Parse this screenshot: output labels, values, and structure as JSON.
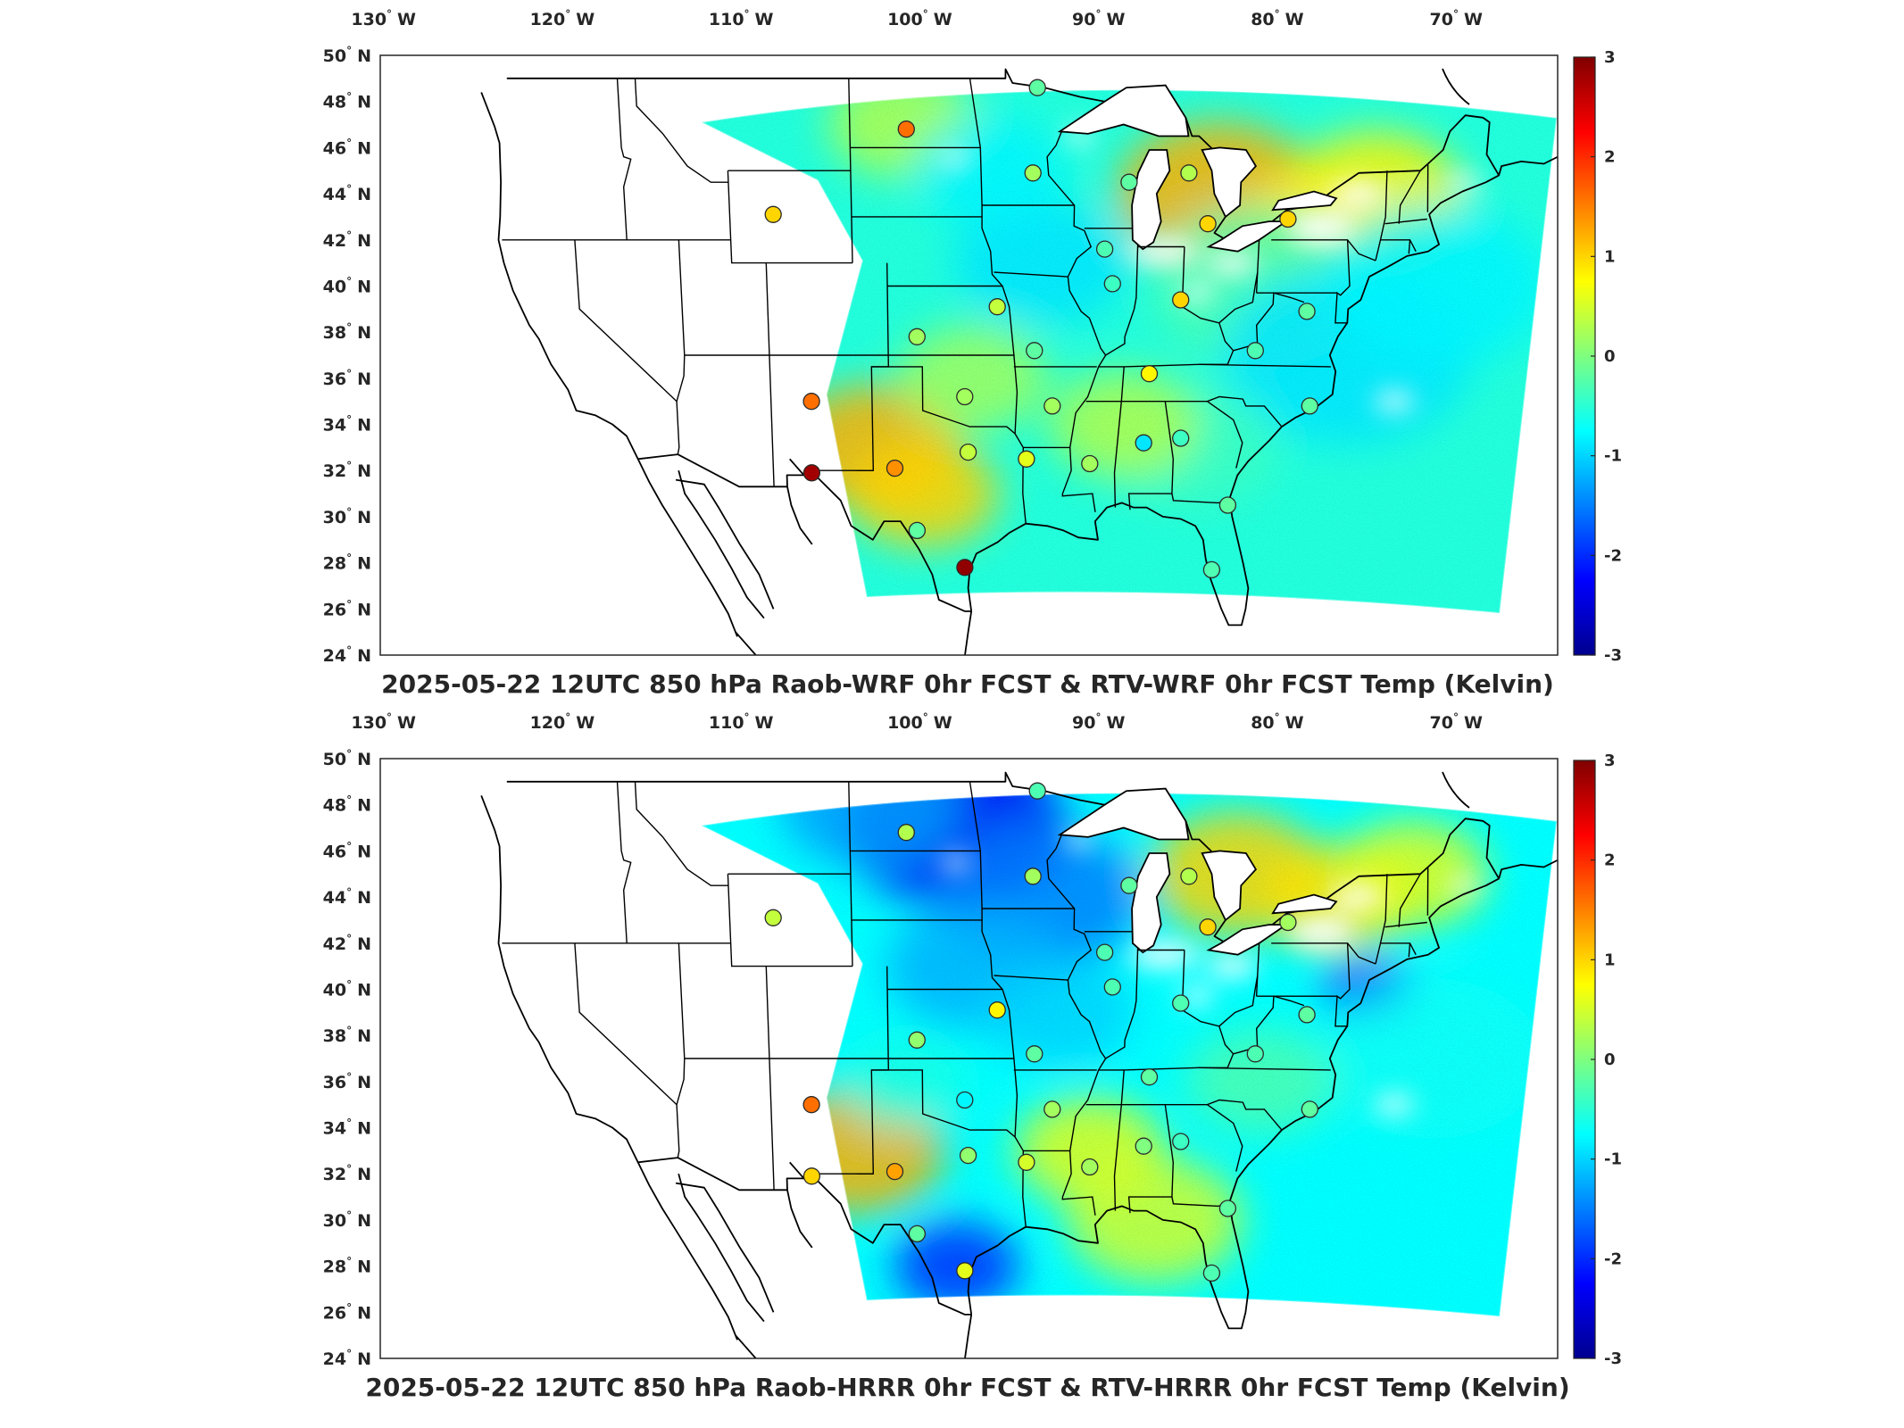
{
  "panels": [
    {
      "title": "2025-05-22 12UTC 850 hPa Raob-WRF 0hr FCST & RTV-WRF 0hr FCST Temp (Kelvin)",
      "variant": "wrf"
    },
    {
      "title": "2025-05-22 12UTC 850 hPa Raob-HRRR 0hr FCST & RTV-HRRR 0hr FCST Temp (Kelvin)",
      "variant": "hrrr"
    }
  ],
  "lon_ticks": [
    {
      "value": -130,
      "label": "130",
      "hemi": "W"
    },
    {
      "value": -120,
      "label": "120",
      "hemi": "W"
    },
    {
      "value": -110,
      "label": "110",
      "hemi": "W"
    },
    {
      "value": -100,
      "label": "100",
      "hemi": "W"
    },
    {
      "value": -90,
      "label": "90",
      "hemi": "W"
    },
    {
      "value": -80,
      "label": "80",
      "hemi": "W"
    },
    {
      "value": -70,
      "label": "70",
      "hemi": "W"
    }
  ],
  "lat_ticks": [
    {
      "value": 50,
      "label": "50",
      "hemi": "N"
    },
    {
      "value": 48,
      "label": "48",
      "hemi": "N"
    },
    {
      "value": 46,
      "label": "46",
      "hemi": "N"
    },
    {
      "value": 44,
      "label": "44",
      "hemi": "N"
    },
    {
      "value": 42,
      "label": "42",
      "hemi": "N"
    },
    {
      "value": 40,
      "label": "40",
      "hemi": "N"
    },
    {
      "value": 38,
      "label": "38",
      "hemi": "N"
    },
    {
      "value": 36,
      "label": "36",
      "hemi": "N"
    },
    {
      "value": 34,
      "label": "34",
      "hemi": "N"
    },
    {
      "value": 32,
      "label": "32",
      "hemi": "N"
    },
    {
      "value": 30,
      "label": "30",
      "hemi": "N"
    },
    {
      "value": 28,
      "label": "28",
      "hemi": "N"
    },
    {
      "value": 26,
      "label": "26",
      "hemi": "N"
    },
    {
      "value": 24,
      "label": "24",
      "hemi": "N"
    }
  ],
  "colorbar": {
    "min": -3,
    "max": 3,
    "ticks": [
      "3",
      "2",
      "1",
      "0",
      "-1",
      "-2",
      "-3"
    ],
    "colormap": "jet"
  },
  "stations_wrf": [
    {
      "lon": -93.4,
      "lat": 48.6,
      "v": -0.2
    },
    {
      "lon": -100.8,
      "lat": 46.8,
      "v": 1.6
    },
    {
      "lon": -93.6,
      "lat": 44.9,
      "v": 0.2
    },
    {
      "lon": -88.1,
      "lat": 44.5,
      "v": -0.2
    },
    {
      "lon": -84.7,
      "lat": 44.9,
      "v": 0.3
    },
    {
      "lon": -108.5,
      "lat": 43.1,
      "v": 1.0
    },
    {
      "lon": -83.5,
      "lat": 42.7,
      "v": 1.0
    },
    {
      "lon": -78.9,
      "lat": 42.9,
      "v": 1.0
    },
    {
      "lon": -89.4,
      "lat": 41.6,
      "v": -0.3
    },
    {
      "lon": -88.9,
      "lat": 40.1,
      "v": -0.4
    },
    {
      "lon": -84.9,
      "lat": 39.4,
      "v": 1.0
    },
    {
      "lon": -95.6,
      "lat": 39.1,
      "v": 0.4
    },
    {
      "lon": -100.3,
      "lat": 37.8,
      "v": 0.2
    },
    {
      "lon": -77.5,
      "lat": 38.9,
      "v": -0.2
    },
    {
      "lon": -93.4,
      "lat": 37.2,
      "v": -0.2
    },
    {
      "lon": -80.4,
      "lat": 37.2,
      "v": -0.3
    },
    {
      "lon": -86.6,
      "lat": 36.2,
      "v": 0.8
    },
    {
      "lon": -97.5,
      "lat": 35.2,
      "v": 0.2
    },
    {
      "lon": -92.3,
      "lat": 34.8,
      "v": 0.2
    },
    {
      "lon": -77.0,
      "lat": 34.8,
      "v": -0.2
    },
    {
      "lon": -106.6,
      "lat": 35.0,
      "v": 1.6
    },
    {
      "lon": -84.6,
      "lat": 33.4,
      "v": -0.4
    },
    {
      "lon": -86.8,
      "lat": 33.2,
      "v": -0.9
    },
    {
      "lon": -97.3,
      "lat": 32.8,
      "v": 0.4
    },
    {
      "lon": -101.7,
      "lat": 32.1,
      "v": 1.4
    },
    {
      "lon": -93.8,
      "lat": 32.5,
      "v": 0.6
    },
    {
      "lon": -90.0,
      "lat": 32.3,
      "v": 0.2
    },
    {
      "lon": -106.7,
      "lat": 31.9,
      "v": 2.8
    },
    {
      "lon": -100.4,
      "lat": 29.4,
      "v": -0.2
    },
    {
      "lon": -81.6,
      "lat": 30.5,
      "v": -0.2
    },
    {
      "lon": -97.5,
      "lat": 27.8,
      "v": 2.9
    },
    {
      "lon": -82.4,
      "lat": 27.7,
      "v": -0.3
    }
  ],
  "stations_hrrr": [
    {
      "lon": -93.4,
      "lat": 48.6,
      "v": -0.3
    },
    {
      "lon": -100.8,
      "lat": 46.8,
      "v": 0.3
    },
    {
      "lon": -93.6,
      "lat": 44.9,
      "v": 0.2
    },
    {
      "lon": -88.1,
      "lat": 44.5,
      "v": -0.2
    },
    {
      "lon": -84.7,
      "lat": 44.9,
      "v": 0.3
    },
    {
      "lon": -108.5,
      "lat": 43.1,
      "v": 0.4
    },
    {
      "lon": -83.5,
      "lat": 42.7,
      "v": 1.0
    },
    {
      "lon": -78.9,
      "lat": 42.9,
      "v": 0.2
    },
    {
      "lon": -89.4,
      "lat": 41.6,
      "v": -0.3
    },
    {
      "lon": -88.9,
      "lat": 40.1,
      "v": -0.3
    },
    {
      "lon": -84.9,
      "lat": 39.4,
      "v": -0.3
    },
    {
      "lon": -95.6,
      "lat": 39.1,
      "v": 0.8
    },
    {
      "lon": -100.3,
      "lat": 37.8,
      "v": 0.1
    },
    {
      "lon": -77.5,
      "lat": 38.9,
      "v": -0.2
    },
    {
      "lon": -93.4,
      "lat": 37.2,
      "v": -0.2
    },
    {
      "lon": -80.4,
      "lat": 37.2,
      "v": -0.3
    },
    {
      "lon": -86.6,
      "lat": 36.2,
      "v": -0.2
    },
    {
      "lon": -97.5,
      "lat": 35.2,
      "v": -0.8
    },
    {
      "lon": -92.3,
      "lat": 34.8,
      "v": 0.2
    },
    {
      "lon": -77.0,
      "lat": 34.8,
      "v": -0.2
    },
    {
      "lon": -106.6,
      "lat": 35.0,
      "v": 1.6
    },
    {
      "lon": -84.6,
      "lat": 33.4,
      "v": -0.4
    },
    {
      "lon": -86.8,
      "lat": 33.2,
      "v": 0.0
    },
    {
      "lon": -97.3,
      "lat": 32.8,
      "v": 0.1
    },
    {
      "lon": -101.7,
      "lat": 32.1,
      "v": 1.3
    },
    {
      "lon": -93.8,
      "lat": 32.5,
      "v": 0.5
    },
    {
      "lon": -90.0,
      "lat": 32.3,
      "v": 0.2
    },
    {
      "lon": -106.7,
      "lat": 31.9,
      "v": 1.0
    },
    {
      "lon": -100.4,
      "lat": 29.4,
      "v": -0.2
    },
    {
      "lon": -81.6,
      "lat": 30.5,
      "v": -0.2
    },
    {
      "lon": -97.5,
      "lat": 27.8,
      "v": 0.6
    },
    {
      "lon": -82.4,
      "lat": 27.7,
      "v": -0.3
    }
  ]
}
